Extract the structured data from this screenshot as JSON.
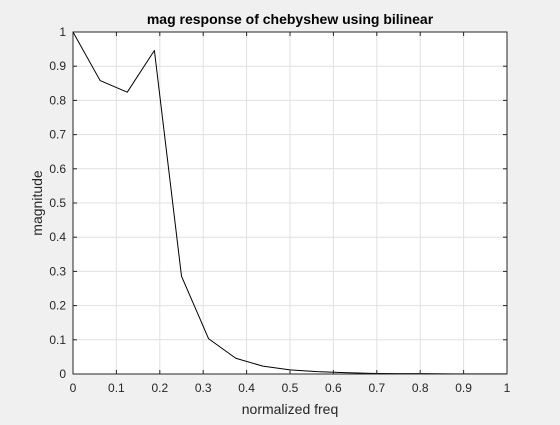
{
  "chart_data": {
    "type": "line",
    "title": "mag response of chebyshew using bilinear",
    "xlabel": "normalized freq",
    "ylabel": "magnitude",
    "xlim": [
      0,
      1
    ],
    "ylim": [
      0,
      1
    ],
    "xticks": [
      0,
      0.1,
      0.2,
      0.3,
      0.4,
      0.5,
      0.6,
      0.7,
      0.8,
      0.9,
      1
    ],
    "yticks": [
      0,
      0.1,
      0.2,
      0.3,
      0.4,
      0.5,
      0.6,
      0.7,
      0.8,
      0.9,
      1
    ],
    "xtick_labels": [
      "0",
      "0.1",
      "0.2",
      "0.3",
      "0.4",
      "0.5",
      "0.6",
      "0.7",
      "0.8",
      "0.9",
      "1"
    ],
    "ytick_labels": [
      "0",
      "0.1",
      "0.2",
      "0.3",
      "0.4",
      "0.5",
      "0.6",
      "0.7",
      "0.8",
      "0.9",
      "1"
    ],
    "grid": true,
    "box": true,
    "series": [
      {
        "color": "#000000",
        "x": [
          0,
          0.0625,
          0.125,
          0.1875,
          0.25,
          0.3125,
          0.375,
          0.4375,
          0.5,
          0.5625,
          0.625,
          0.6875,
          0.75,
          0.8125,
          0.875,
          0.9375,
          1
        ],
        "y": [
          1.0,
          0.858,
          0.824,
          0.946,
          0.286,
          0.103,
          0.046,
          0.023,
          0.012,
          0.007,
          0.004,
          0.002,
          0.001,
          0.001,
          0.0005,
          0.0003,
          0.0002
        ]
      }
    ]
  }
}
